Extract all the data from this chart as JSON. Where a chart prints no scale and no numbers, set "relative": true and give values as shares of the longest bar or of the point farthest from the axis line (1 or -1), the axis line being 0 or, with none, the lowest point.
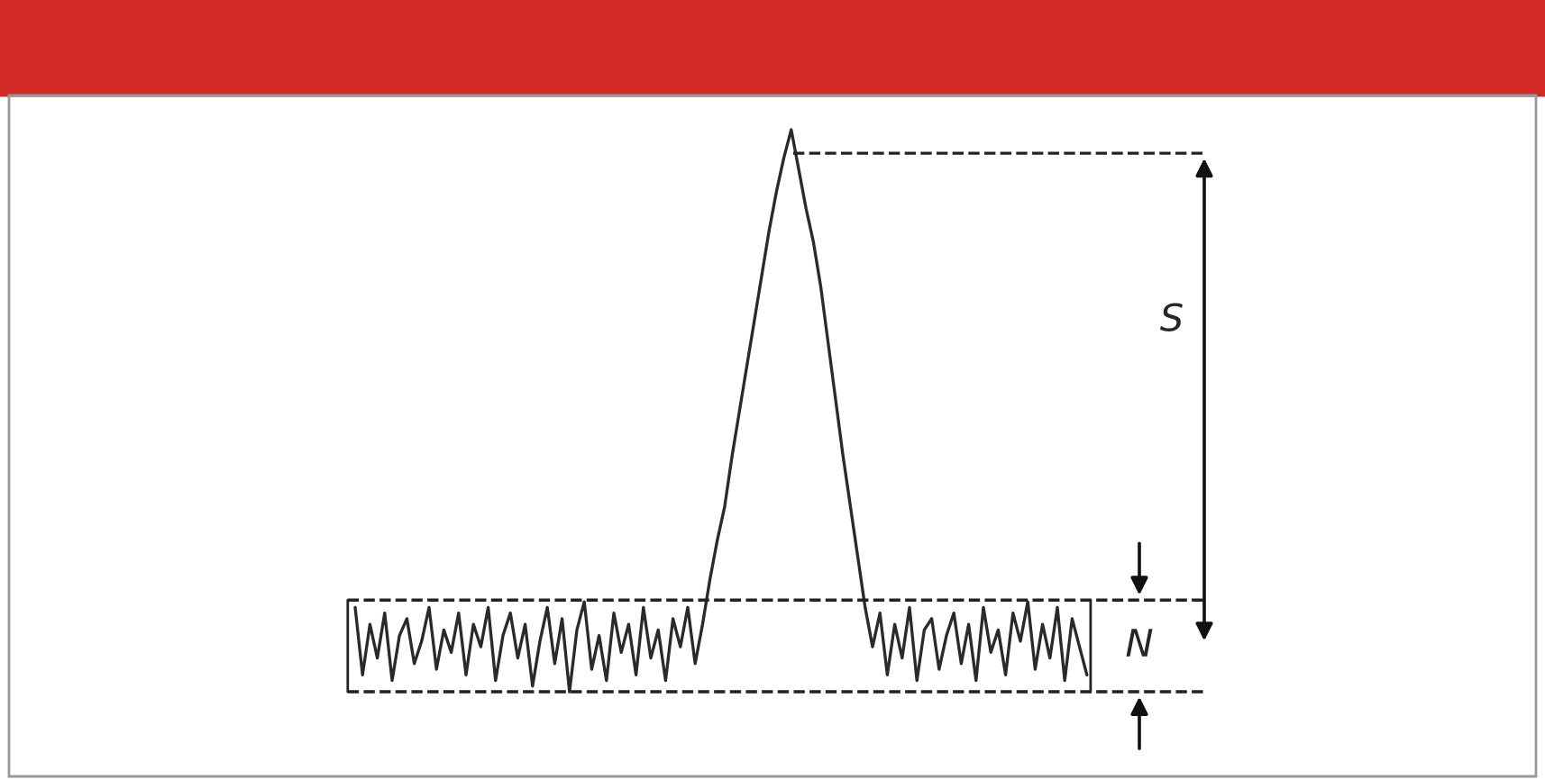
{
  "chart_data": {
    "type": "line",
    "relative": true,
    "marker": "none",
    "line_style": "solid",
    "categories": [
      null,
      null,
      null,
      null,
      null,
      null,
      null,
      null,
      null,
      null,
      null,
      null,
      null,
      null,
      null,
      null,
      null,
      null,
      null,
      null,
      null,
      null,
      null,
      null,
      null,
      null,
      null,
      null,
      null,
      null,
      null,
      null,
      null,
      null,
      null,
      null,
      null,
      null,
      null,
      null,
      null,
      null,
      null,
      null,
      null,
      null,
      null,
      null,
      null,
      null,
      null,
      null,
      null,
      null,
      null,
      null,
      null,
      null,
      null,
      null,
      null,
      null,
      null,
      null,
      null,
      null,
      null,
      null,
      null,
      null,
      null,
      null,
      null,
      null,
      null,
      null,
      null,
      null,
      null,
      null,
      null,
      null,
      null,
      null,
      null,
      null,
      null,
      null,
      null,
      null,
      null,
      null,
      null,
      null,
      null,
      null,
      null,
      null,
      null,
      null
    ],
    "series": [
      {
        "color": "#2a2a2a",
        "values": [
          0.15,
          0.03,
          0.12,
          0.06,
          0.14,
          0.02,
          0.1,
          0.13,
          0.05,
          0.09,
          0.15,
          0.04,
          0.11,
          0.07,
          0.14,
          0.03,
          0.12,
          0.08,
          0.15,
          0.02,
          0.1,
          0.14,
          0.06,
          0.12,
          0.01,
          0.09,
          0.15,
          0.05,
          0.13,
          0.0,
          0.11,
          0.16,
          0.04,
          0.1,
          0.02,
          0.14,
          0.07,
          0.12,
          0.03,
          0.15,
          0.06,
          0.11,
          0.02,
          0.13,
          0.08,
          0.15,
          0.05,
          0.12,
          0.2,
          0.27,
          0.33,
          0.42,
          0.5,
          0.58,
          0.66,
          0.74,
          0.82,
          0.89,
          0.95,
          1.0,
          0.93,
          0.86,
          0.8,
          0.72,
          0.62,
          0.52,
          0.42,
          0.33,
          0.24,
          0.15,
          0.08,
          0.14,
          0.03,
          0.12,
          0.06,
          0.15,
          0.02,
          0.11,
          0.13,
          0.04,
          0.1,
          0.14,
          0.05,
          0.12,
          0.02,
          0.15,
          0.07,
          0.11,
          0.03,
          0.14,
          0.09,
          0.16,
          0.04,
          0.12,
          0.06,
          0.15,
          0.02,
          0.13,
          0.08,
          0.03
        ]
      }
    ],
    "ref_lines": [
      {
        "axis": "y",
        "value": 0.958,
        "color": "#222222",
        "line_style": "dashed"
      },
      {
        "axis": "y",
        "value": 0.163,
        "color": "#222222",
        "line_style": "dashed"
      },
      {
        "axis": "y",
        "value": 0,
        "color": "#222222",
        "line_style": "dashed"
      }
    ],
    "annotations": [
      "S",
      "N"
    ]
  }
}
